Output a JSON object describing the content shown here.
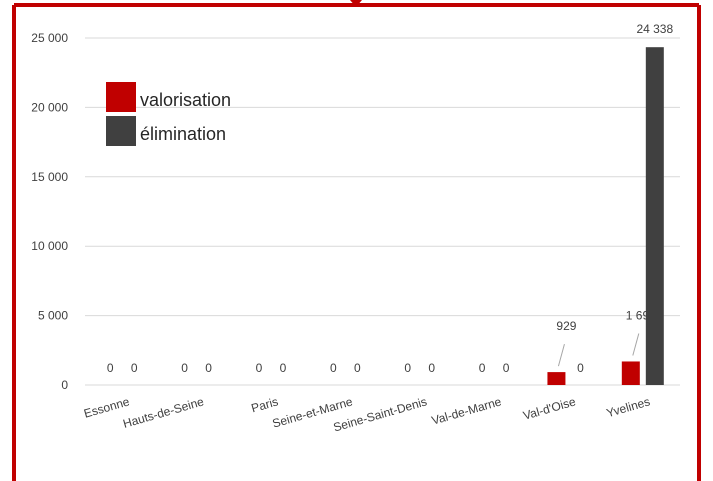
{
  "colors": {
    "frame": "#c00000",
    "valorisation": "#c00000",
    "elimination": "#404040",
    "grid": "#d9d9d9",
    "text": "#404040"
  },
  "chart_data": {
    "type": "bar",
    "title": "",
    "xlabel": "",
    "ylabel": "",
    "ylim": [
      0,
      25000
    ],
    "yticks": [
      0,
      5000,
      10000,
      15000,
      20000,
      25000
    ],
    "ytick_labels": [
      "0",
      "5 000",
      "10 000",
      "15 000",
      "20 000",
      "25 000"
    ],
    "grid": true,
    "legend_position": "top-left",
    "categories": [
      "Essonne",
      "Hauts-de-Seine",
      "Paris",
      "Seine-et-Marne",
      "Seine-Saint-Denis",
      "Val-de-Marne",
      "Val-d'Oise",
      "Yvelines"
    ],
    "series": [
      {
        "name": "valorisation",
        "color": "#c00000",
        "values": [
          0,
          0,
          0,
          0,
          0,
          0,
          929,
          1695
        ],
        "labels": [
          "0",
          "0",
          "0",
          "0",
          "0",
          "0",
          "929",
          "1 695"
        ]
      },
      {
        "name": "élimination",
        "color": "#404040",
        "values": [
          0,
          0,
          0,
          0,
          0,
          0,
          0,
          24338
        ],
        "labels": [
          "0",
          "0",
          "0",
          "0",
          "0",
          "0",
          "0",
          "24 338"
        ]
      }
    ]
  }
}
